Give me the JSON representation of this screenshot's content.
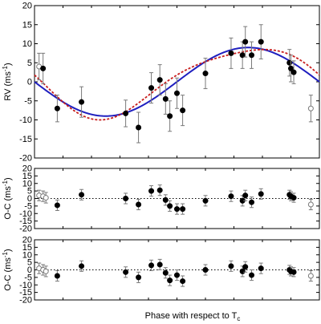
{
  "chart_data": [
    {
      "type": "scatter",
      "ylabel": "RV (ms",
      "ylabel_unit_exp": "-1",
      "ylabel_close": ")",
      "xlim": [
        0,
        1
      ],
      "ylim": [
        -20,
        20
      ],
      "yticks": [
        -20,
        -15,
        -10,
        -5,
        0,
        5,
        10,
        15,
        20
      ],
      "grid": false,
      "zero_line": false,
      "colors": {
        "blue_model": "#1f1fbf",
        "red_model": "#c81e1e",
        "points": "#000000",
        "errorbars": "#7a7a7a"
      },
      "points": [
        {
          "x": 0.016,
          "y": 4.0,
          "err": 3.5,
          "open": true
        },
        {
          "x": 0.03,
          "y": 3.5,
          "err": 4.0,
          "open": false
        },
        {
          "x": 0.08,
          "y": -7.0,
          "err": 3.5,
          "open": false
        },
        {
          "x": 0.165,
          "y": -5.3,
          "err": 4.0,
          "open": false
        },
        {
          "x": 0.32,
          "y": -8.3,
          "err": 3.5,
          "open": false
        },
        {
          "x": 0.365,
          "y": -12.0,
          "err": 4.0,
          "open": false
        },
        {
          "x": 0.41,
          "y": -1.6,
          "err": 4.0,
          "open": false
        },
        {
          "x": 0.44,
          "y": 0.5,
          "err": 4.0,
          "open": false
        },
        {
          "x": 0.46,
          "y": -4.5,
          "err": 4.0,
          "open": false
        },
        {
          "x": 0.475,
          "y": -9.0,
          "err": 4.0,
          "open": false
        },
        {
          "x": 0.5,
          "y": -3.0,
          "err": 4.0,
          "open": false
        },
        {
          "x": 0.52,
          "y": -7.5,
          "err": 4.0,
          "open": false
        },
        {
          "x": 0.6,
          "y": 2.2,
          "err": 4.0,
          "open": false
        },
        {
          "x": 0.69,
          "y": 7.5,
          "err": 4.0,
          "open": false
        },
        {
          "x": 0.73,
          "y": 7.0,
          "err": 3.5,
          "open": false
        },
        {
          "x": 0.74,
          "y": 10.5,
          "err": 4.0,
          "open": false
        },
        {
          "x": 0.762,
          "y": 7.0,
          "err": 3.5,
          "open": false
        },
        {
          "x": 0.795,
          "y": 10.5,
          "err": 4.5,
          "open": false
        },
        {
          "x": 0.895,
          "y": 5.0,
          "err": 3.5,
          "open": false
        },
        {
          "x": 0.9,
          "y": 3.5,
          "err": 3.5,
          "open": false
        },
        {
          "x": 0.91,
          "y": 2.5,
          "err": 3.0,
          "open": false
        },
        {
          "x": 0.97,
          "y": -7.0,
          "err": 3.5,
          "open": true
        }
      ],
      "models": [
        {
          "kind": "circular",
          "K": 9.0,
          "phase_min": 0.25
        },
        {
          "kind": "eccentric",
          "K": 9.0,
          "phase_min": 0.25
        }
      ]
    },
    {
      "type": "scatter",
      "ylabel": "O-C (ms",
      "ylabel_unit_exp": "-1",
      "ylabel_close": ")",
      "xlim": [
        0,
        1
      ],
      "ylim": [
        -20,
        20
      ],
      "yticks": [
        -20,
        -15,
        -10,
        -5,
        0,
        5,
        10,
        15,
        20
      ],
      "grid": false,
      "zero_line": true,
      "points": [
        {
          "x": 0.016,
          "y": 2.0,
          "err": 3.5,
          "open": true
        },
        {
          "x": 0.03,
          "y": 1.5,
          "err": 3.5,
          "open": true
        },
        {
          "x": 0.04,
          "y": 0.5,
          "err": 3.5,
          "open": true
        },
        {
          "x": 0.08,
          "y": -4.5,
          "err": 3.5,
          "open": false
        },
        {
          "x": 0.165,
          "y": 2.5,
          "err": 3.5,
          "open": false
        },
        {
          "x": 0.32,
          "y": 0.0,
          "err": 3.5,
          "open": false
        },
        {
          "x": 0.365,
          "y": -4.0,
          "err": 3.5,
          "open": false
        },
        {
          "x": 0.41,
          "y": 5.0,
          "err": 3.5,
          "open": false
        },
        {
          "x": 0.44,
          "y": 5.5,
          "err": 3.5,
          "open": false
        },
        {
          "x": 0.46,
          "y": -1.0,
          "err": 3.5,
          "open": false
        },
        {
          "x": 0.475,
          "y": -5.0,
          "err": 3.5,
          "open": false
        },
        {
          "x": 0.5,
          "y": -7.0,
          "err": 3.5,
          "open": false
        },
        {
          "x": 0.52,
          "y": -7.0,
          "err": 3.5,
          "open": false
        },
        {
          "x": 0.6,
          "y": -1.5,
          "err": 3.5,
          "open": false
        },
        {
          "x": 0.69,
          "y": 1.5,
          "err": 3.5,
          "open": false
        },
        {
          "x": 0.73,
          "y": -1.5,
          "err": 3.5,
          "open": false
        },
        {
          "x": 0.74,
          "y": 2.0,
          "err": 3.5,
          "open": false
        },
        {
          "x": 0.762,
          "y": -2.5,
          "err": 3.5,
          "open": false
        },
        {
          "x": 0.795,
          "y": 3.0,
          "err": 3.5,
          "open": false
        },
        {
          "x": 0.895,
          "y": 2.5,
          "err": 3.0,
          "open": false
        },
        {
          "x": 0.9,
          "y": 1.5,
          "err": 3.0,
          "open": false
        },
        {
          "x": 0.91,
          "y": 0.5,
          "err": 3.0,
          "open": false
        },
        {
          "x": 0.97,
          "y": -4.0,
          "err": 3.5,
          "open": true
        }
      ]
    },
    {
      "type": "scatter",
      "ylabel": "O-C (ms",
      "ylabel_unit_exp": "-1",
      "ylabel_close": ")",
      "xlabel": "Phase with respect to T",
      "xlabel_subscript": "c",
      "xlim": [
        0,
        1
      ],
      "ylim": [
        -20,
        20
      ],
      "yticks": [
        -20,
        -15,
        -10,
        -5,
        0,
        5,
        10,
        15,
        20
      ],
      "grid": false,
      "zero_line": true,
      "points": [
        {
          "x": 0.016,
          "y": 1.0,
          "err": 3.5,
          "open": true
        },
        {
          "x": 0.03,
          "y": 0.0,
          "err": 3.5,
          "open": true
        },
        {
          "x": 0.04,
          "y": -1.0,
          "err": 3.5,
          "open": true
        },
        {
          "x": 0.08,
          "y": -4.0,
          "err": 3.5,
          "open": false
        },
        {
          "x": 0.165,
          "y": 2.5,
          "err": 3.5,
          "open": false
        },
        {
          "x": 0.32,
          "y": -1.5,
          "err": 3.5,
          "open": false
        },
        {
          "x": 0.365,
          "y": -5.0,
          "err": 3.5,
          "open": false
        },
        {
          "x": 0.41,
          "y": 3.0,
          "err": 3.5,
          "open": false
        },
        {
          "x": 0.44,
          "y": 3.5,
          "err": 3.5,
          "open": false
        },
        {
          "x": 0.46,
          "y": -2.0,
          "err": 3.5,
          "open": false
        },
        {
          "x": 0.475,
          "y": -7.0,
          "err": 3.5,
          "open": false
        },
        {
          "x": 0.5,
          "y": -3.5,
          "err": 3.5,
          "open": false
        },
        {
          "x": 0.52,
          "y": -7.5,
          "err": 3.5,
          "open": false
        },
        {
          "x": 0.6,
          "y": 0.0,
          "err": 3.5,
          "open": false
        },
        {
          "x": 0.69,
          "y": 2.5,
          "err": 3.5,
          "open": false
        },
        {
          "x": 0.73,
          "y": -1.0,
          "err": 3.5,
          "open": false
        },
        {
          "x": 0.74,
          "y": 2.0,
          "err": 3.5,
          "open": false
        },
        {
          "x": 0.762,
          "y": -3.5,
          "err": 3.5,
          "open": false
        },
        {
          "x": 0.795,
          "y": 1.0,
          "err": 3.5,
          "open": false
        },
        {
          "x": 0.895,
          "y": 0.0,
          "err": 3.0,
          "open": false
        },
        {
          "x": 0.9,
          "y": -1.0,
          "err": 3.0,
          "open": false
        },
        {
          "x": 0.91,
          "y": -1.5,
          "err": 3.0,
          "open": false
        },
        {
          "x": 0.97,
          "y": -4.0,
          "err": 3.5,
          "open": true
        }
      ]
    }
  ]
}
